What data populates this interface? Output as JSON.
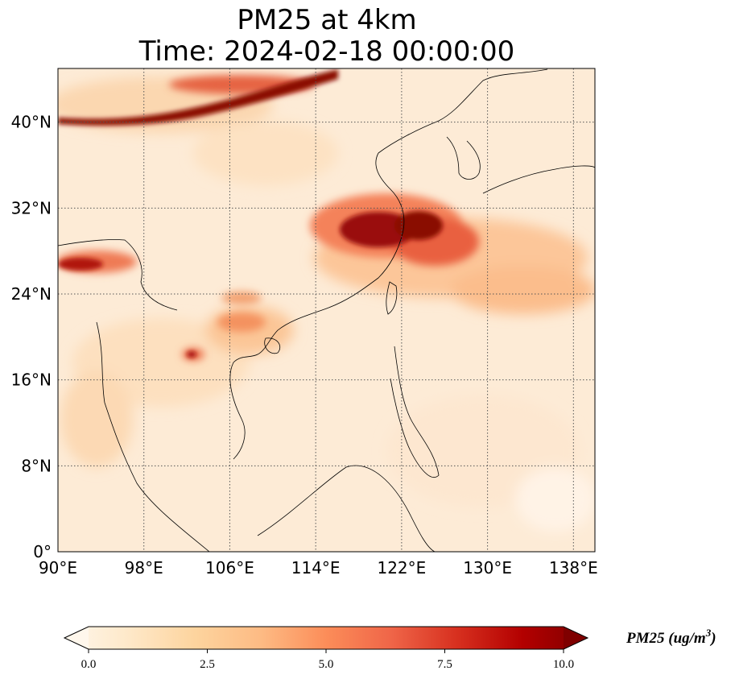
{
  "title_line1": "PM25 at 4km",
  "title_line2": "Time: 2024-02-18 00:00:00",
  "map": {
    "lon_range": [
      90,
      140
    ],
    "lat_range": [
      0,
      45
    ],
    "lon_ticks": [
      {
        "value": 90,
        "label": "90°E"
      },
      {
        "value": 98,
        "label": "98°E"
      },
      {
        "value": 106,
        "label": "106°E"
      },
      {
        "value": 114,
        "label": "114°E"
      },
      {
        "value": 122,
        "label": "122°E"
      },
      {
        "value": 130,
        "label": "130°E"
      },
      {
        "value": 138,
        "label": "138°E"
      }
    ],
    "lat_ticks": [
      {
        "value": 0,
        "label": "0°"
      },
      {
        "value": 8,
        "label": "8°N"
      },
      {
        "value": 16,
        "label": "16°N"
      },
      {
        "value": 24,
        "label": "24°N"
      },
      {
        "value": 32,
        "label": "32°N"
      },
      {
        "value": 40,
        "label": "40°N"
      }
    ],
    "grid": "dotted"
  },
  "colorbar": {
    "label": "PM25 (ug/m",
    "label_sup": "3",
    "label_close": ")",
    "min": 0.0,
    "max": 10.0,
    "extend": "both",
    "ticks": [
      "0.0",
      "2.5",
      "5.0",
      "7.5",
      "10.0"
    ],
    "colormap": "OrRd",
    "colors": [
      "#fff7ec",
      "#fee8c8",
      "#fdd49e",
      "#fdbb84",
      "#fc8d59",
      "#ef6548",
      "#d7301f",
      "#b30000",
      "#7f0000"
    ]
  }
}
